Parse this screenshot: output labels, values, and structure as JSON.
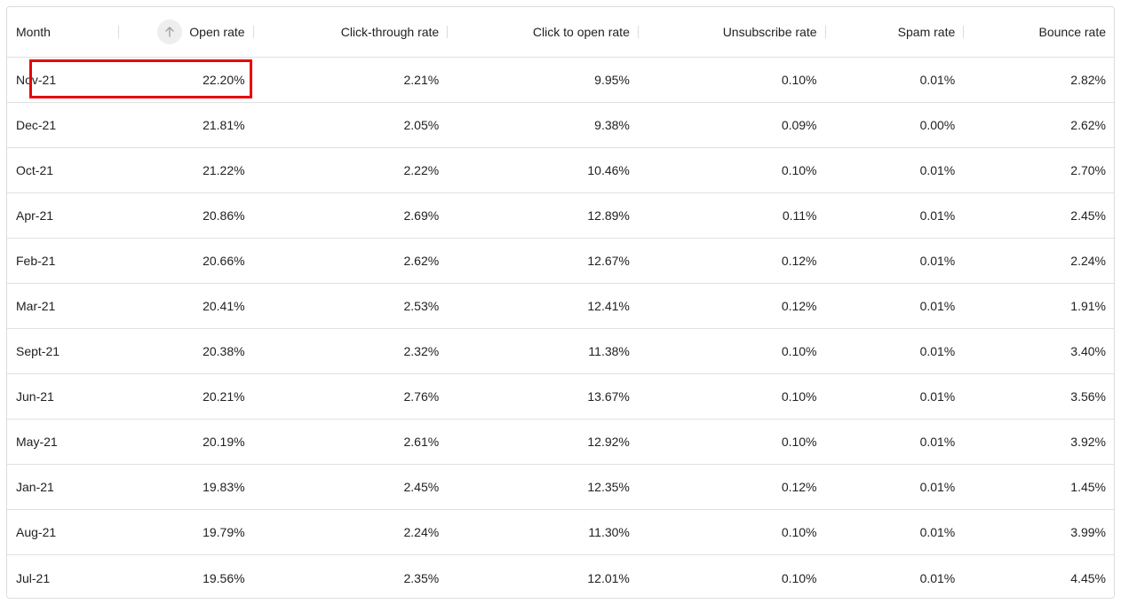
{
  "table": {
    "columns": [
      {
        "label": "Month",
        "sortable_indicator": false
      },
      {
        "label": "Open rate",
        "sortable_indicator": true,
        "sort_icon": "arrow-up-icon",
        "sort_direction": "ascending"
      },
      {
        "label": "Click-through rate"
      },
      {
        "label": "Click to open rate"
      },
      {
        "label": "Unsubscribe rate"
      },
      {
        "label": "Spam rate"
      },
      {
        "label": "Bounce rate"
      }
    ],
    "rows": [
      [
        "Nov-21",
        "22.20%",
        "2.21%",
        "9.95%",
        "0.10%",
        "0.01%",
        "2.82%"
      ],
      [
        "Dec-21",
        "21.81%",
        "2.05%",
        "9.38%",
        "0.09%",
        "0.00%",
        "2.62%"
      ],
      [
        "Oct-21",
        "21.22%",
        "2.22%",
        "10.46%",
        "0.10%",
        "0.01%",
        "2.70%"
      ],
      [
        "Apr-21",
        "20.86%",
        "2.69%",
        "12.89%",
        "0.11%",
        "0.01%",
        "2.45%"
      ],
      [
        "Feb-21",
        "20.66%",
        "2.62%",
        "12.67%",
        "0.12%",
        "0.01%",
        "2.24%"
      ],
      [
        "Mar-21",
        "20.41%",
        "2.53%",
        "12.41%",
        "0.12%",
        "0.01%",
        "1.91%"
      ],
      [
        "Sept-21",
        "20.38%",
        "2.32%",
        "11.38%",
        "0.10%",
        "0.01%",
        "3.40%"
      ],
      [
        "Jun-21",
        "20.21%",
        "2.76%",
        "13.67%",
        "0.10%",
        "0.01%",
        "3.56%"
      ],
      [
        "May-21",
        "20.19%",
        "2.61%",
        "12.92%",
        "0.10%",
        "0.01%",
        "3.92%"
      ],
      [
        "Jan-21",
        "19.83%",
        "2.45%",
        "12.35%",
        "0.12%",
        "0.01%",
        "1.45%"
      ],
      [
        "Aug-21",
        "19.79%",
        "2.24%",
        "11.30%",
        "0.10%",
        "0.01%",
        "3.99%"
      ],
      [
        "Jul-21",
        "19.56%",
        "2.35%",
        "12.01%",
        "0.10%",
        "0.01%",
        "4.45%"
      ]
    ],
    "highlighted_row": 0,
    "highlight_color": "#e8000b"
  }
}
